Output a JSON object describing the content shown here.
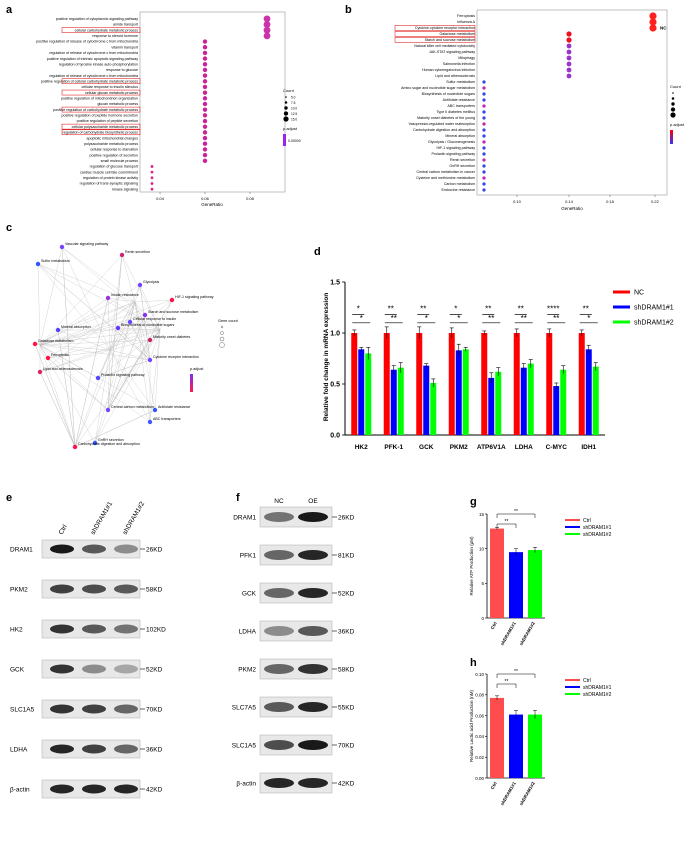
{
  "panels": {
    "a": "a",
    "b": "b",
    "c": "c",
    "d": "d",
    "e": "e",
    "f": "f",
    "g": "g",
    "h": "h"
  },
  "panel_a": {
    "terms": [
      "positive regulation of cytoplasmic signaling pathway",
      "amide transport",
      "cellular carbohydrate metabolic process",
      "response to steroid hormone",
      "positive regulation of release of cytochrome c from mitochondria",
      "vitamin transport",
      "regulation of release of cytochrome c from mitochondria",
      "positive regulation of intrinsic apoptotic signaling pathway",
      "regulation of tyrosine kinase auto-phosphorylation",
      "response to glucose",
      "regulation of release of cytochrome c from mitochondria",
      "positive regulation of cellular carbohydrate metabolic process",
      "cellular response to insulin stimulus",
      "cellular glucan metabolic process",
      "positive regulation of mitochondrion organization",
      "glucan metabolic process",
      "positive regulation of carbohydrate metabolic process",
      "positive regulation of peptide hormone secretion",
      "positive regulation of peptide secretion",
      "cellular polysaccharide metabolic process",
      "regulation of carbohydrate biosynthetic process",
      "apoptotic mitochondrial changes",
      "polysaccharide metabolic process",
      "cellular response to starvation",
      "positive regulation of secretion",
      "small molecule process",
      "regulation of glucose transport",
      "cardiac muscle cell fate commitment",
      "regulation of protein kinase activity",
      "regulation of trans-synaptic signaling",
      "kinase signaling"
    ],
    "x_ticks": [
      "0.04",
      "0.06",
      "0.08"
    ],
    "xlabel": "GeneRatio",
    "legend_count_title": "Count",
    "legend_count_values": [
      "5.0",
      "7.5",
      "10.0",
      "12.5",
      "15.0"
    ],
    "legend_padj_title": "p.adjust",
    "legend_padj_value": "0.00000"
  },
  "panel_b": {
    "terms": [
      "Ferroptosis",
      "Influenza A",
      "Cytokine-cytokine receptor interaction",
      "Galactose metabolism",
      "Starch and sucrose metabolism",
      "Natural killer cell mediated cytotoxicity",
      "JAK-STAT signaling pathway",
      "Mitophagy",
      "Salmonella infection",
      "Human cytomegalovirus infection",
      "Lipid and atherosclerosis",
      "Sulfur metabolism",
      "Amino sugar and nucleotide sugar metabolism",
      "Biosynthesis of nucleotide sugars",
      "Antifolate resistance",
      "ABC transporters",
      "Type II diabetes mellitus",
      "Maturity onset diabetes of the young",
      "Vasopressin-regulated water reabsorption",
      "Carbohydrate digestion and absorption",
      "Mineral absorption",
      "Glycolysis / Gluconeogenesis",
      "HIF-1 signaling pathway",
      "Prolactin signaling pathway",
      "Renin secretion",
      "GnRH secretion",
      "Central carbon metabolism in cancer",
      "Cysteine and methionine metabolism",
      "Carbon metabolism",
      "Endocrine resistance"
    ],
    "x_ticks": [
      "0.10",
      "0.14",
      "0.18",
      "0.22"
    ],
    "xlabel": "GeneRatio",
    "legend_count_title": "Count",
    "legend_padj_title": "p.adjust",
    "nc_label": "NC"
  },
  "panel_c": {
    "nodes": [
      "Vascular signaling pathway",
      "Sulfur metabolism",
      "Renin secretion",
      "Carbohydrate digestion and absorption",
      "Glycolysis",
      "HIF-1 signaling pathway",
      "Insulin resistance",
      "Cellular response to insulin",
      "Maturity onset diabetes",
      "Mineral absorption",
      "Cytokine receptor interaction",
      "Ferroptosis",
      "Lipid and atherosclerosis",
      "Biosynthesis of nucleotide sugars",
      "Starch and sucrose metabolism",
      "Galactose metabolism",
      "Prolactin signaling pathway",
      "Central carbon metabolism",
      "Antifolate resistance",
      "ABC transporters",
      "GnRH secretion"
    ],
    "legend_title": "Gene count",
    "legend_padj": "p.adjust"
  },
  "panel_d": {
    "chart_data": {
      "type": "bar",
      "categories": [
        "HK2",
        "PFK-1",
        "GCK",
        "PKM2",
        "ATP6V1A",
        "LDHA",
        "C-MYC",
        "IDH1"
      ],
      "series": [
        {
          "name": "NC",
          "color": "#ff0000",
          "values": [
            1.0,
            1.0,
            1.0,
            1.0,
            1.0,
            1.0,
            1.0,
            1.0
          ],
          "errors": [
            0.03,
            0.06,
            0.06,
            0.05,
            0.02,
            0.04,
            0.04,
            0.03
          ]
        },
        {
          "name": "shDRAM1#1",
          "color": "#0000ff",
          "values": [
            0.84,
            0.64,
            0.68,
            0.83,
            0.56,
            0.66,
            0.48,
            0.84
          ],
          "errors": [
            0.02,
            0.04,
            0.02,
            0.06,
            0.05,
            0.04,
            0.03,
            0.04
          ]
        },
        {
          "name": "shDRAM1#2",
          "color": "#00ff00",
          "values": [
            0.8,
            0.66,
            0.51,
            0.84,
            0.62,
            0.7,
            0.64,
            0.67
          ],
          "errors": [
            0.06,
            0.05,
            0.04,
            0.02,
            0.04,
            0.04,
            0.04,
            0.04
          ]
        }
      ],
      "sig_top": [
        "*",
        "**",
        "**",
        "*",
        "**",
        "**",
        "****",
        "**"
      ],
      "sig_bottom": [
        "*",
        "**",
        "*",
        "*",
        "**",
        "**",
        "**",
        "*"
      ],
      "ylabel": "Relative fold change in mRNA expression",
      "ylim": [
        0,
        1.5
      ],
      "yticks": [
        "0.0",
        "0.5",
        "1.0",
        "1.5"
      ]
    }
  },
  "panel_e": {
    "lanes": [
      "Ctrl",
      "shDRAM1#1",
      "shDRAM1#2"
    ],
    "bands": [
      {
        "name": "DRAM1",
        "kd": "26KD",
        "intensity": [
          0.9,
          0.65,
          0.45
        ]
      },
      {
        "name": "PKM2",
        "kd": "58KD",
        "intensity": [
          0.75,
          0.7,
          0.65
        ]
      },
      {
        "name": "HK2",
        "kd": "102KD",
        "intensity": [
          0.8,
          0.65,
          0.55
        ]
      },
      {
        "name": "GCK",
        "kd": "52KD",
        "intensity": [
          0.8,
          0.45,
          0.35
        ]
      },
      {
        "name": "SLC1A5",
        "kd": "70KD",
        "intensity": [
          0.8,
          0.75,
          0.6
        ]
      },
      {
        "name": "LDHA",
        "kd": "36KD",
        "intensity": [
          0.85,
          0.75,
          0.6
        ]
      },
      {
        "name": "β-actin",
        "kd": "42KD",
        "intensity": [
          0.85,
          0.85,
          0.85
        ]
      }
    ]
  },
  "panel_f": {
    "lanes": [
      "NC",
      "OE"
    ],
    "bands": [
      {
        "name": "DRAM1",
        "kd": "26KD",
        "intensity": [
          0.55,
          0.9
        ]
      },
      {
        "name": "PFK1",
        "kd": "81KD",
        "intensity": [
          0.6,
          0.85
        ]
      },
      {
        "name": "GCK",
        "kd": "52KD",
        "intensity": [
          0.6,
          0.85
        ]
      },
      {
        "name": "LDHA",
        "kd": "36KD",
        "intensity": [
          0.45,
          0.65
        ]
      },
      {
        "name": "PKM2",
        "kd": "58KD",
        "intensity": [
          0.6,
          0.8
        ]
      },
      {
        "name": "SLC7A5",
        "kd": "55KD",
        "intensity": [
          0.65,
          0.85
        ]
      },
      {
        "name": "SLC1A5",
        "kd": "70KD",
        "intensity": [
          0.7,
          0.9
        ]
      },
      {
        "name": "β-actin",
        "kd": "42KD",
        "intensity": [
          0.85,
          0.85
        ]
      }
    ]
  },
  "panel_g": {
    "chart_data": {
      "type": "bar",
      "categories": [
        "Ctrl",
        "shDRAM1#1",
        "shDRAM1#2"
      ],
      "values": [
        12.9,
        9.5,
        9.8
      ],
      "errors": [
        0.15,
        0.5,
        0.4
      ],
      "colors": [
        "#ff4d4d",
        "#0000ff",
        "#00ff00"
      ],
      "legend": [
        "Ctrl",
        "shDRAM1#1",
        "shDRAM1#2"
      ],
      "sig": [
        "**",
        "**"
      ],
      "ylabel": "Relative ATP Production (μM)",
      "ylim": [
        0,
        15
      ],
      "yticks": [
        "0",
        "5",
        "10",
        "15"
      ]
    }
  },
  "panel_h": {
    "chart_data": {
      "type": "bar",
      "categories": [
        "Ctrl",
        "shDRAM1#1",
        "shDRAM1#2"
      ],
      "values": [
        0.077,
        0.061,
        0.061
      ],
      "errors": [
        0.002,
        0.004,
        0.004
      ],
      "colors": [
        "#ff4d4d",
        "#0000ff",
        "#00ff00"
      ],
      "legend": [
        "Ctrl",
        "shDRAM1#1",
        "shDRAM1#2"
      ],
      "sig": [
        "**",
        "**"
      ],
      "ylabel": "Relative Lactic acid Production (nM)",
      "ylim": [
        0,
        0.1
      ],
      "yticks": [
        "0.00",
        "0.02",
        "0.04",
        "0.06",
        "0.08",
        "0.10"
      ]
    }
  }
}
